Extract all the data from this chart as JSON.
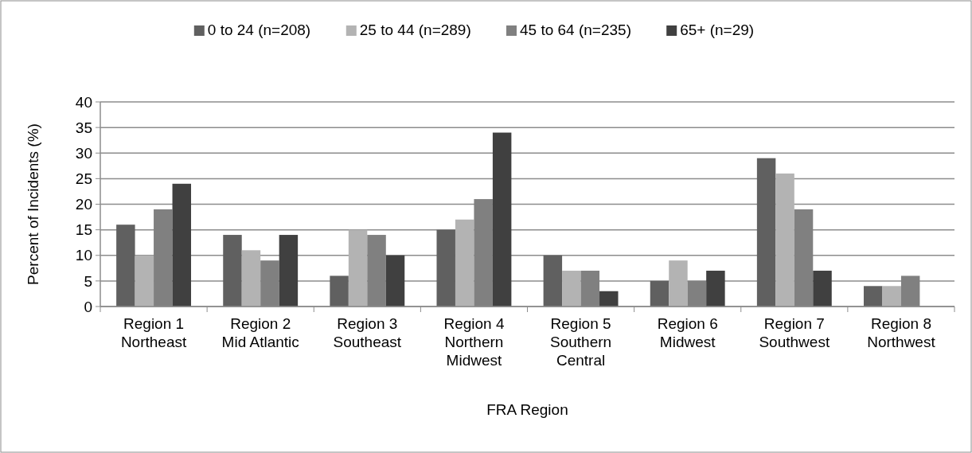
{
  "chart_data": {
    "type": "bar",
    "xlabel": "FRA Region",
    "ylabel": "Percent of Incidents (%)",
    "categories": [
      "Region 1\nNortheast",
      "Region 2\nMid Atlantic",
      "Region 3\nSoutheast",
      "Region 4\nNorthern\nMidwest",
      "Region 5\nSouthern\nCentral",
      "Region 6\nMidwest",
      "Region 7\nSouthwest",
      "Region 8\nNorthwest"
    ],
    "series": [
      {
        "name": "0 to 24 (n=208)",
        "color": "#606060",
        "values": [
          16,
          14,
          6,
          15,
          10,
          5,
          29,
          4
        ]
      },
      {
        "name": "25 to 44 (n=289)",
        "color": "#b3b3b3",
        "values": [
          10,
          11,
          15,
          17,
          7,
          9,
          26,
          4
        ]
      },
      {
        "name": "45 to 64 (n=235)",
        "color": "#808080",
        "values": [
          19,
          9,
          14,
          21,
          7,
          5,
          19,
          6
        ]
      },
      {
        "name": "65+ (n=29)",
        "color": "#404040",
        "values": [
          24,
          14,
          10,
          34,
          3,
          7,
          7,
          null
        ]
      }
    ],
    "ylim": [
      0,
      40
    ],
    "yticks": [
      0,
      5,
      10,
      15,
      20,
      25,
      30,
      35,
      40
    ],
    "grid": "y",
    "legend": "top"
  }
}
